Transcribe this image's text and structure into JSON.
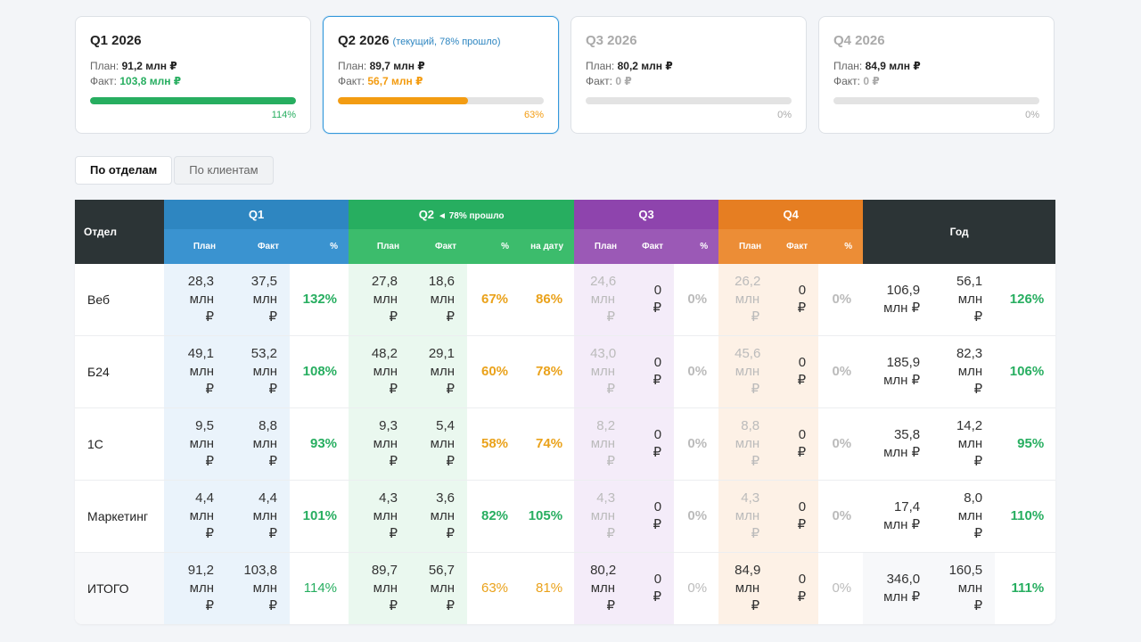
{
  "cards": [
    {
      "title": "Q1 2026",
      "plan_label": "План:",
      "plan": "91,2 млн ₽",
      "fact_label": "Факт:",
      "fact": "103,8 млн ₽",
      "progress": {
        "value": 114,
        "label": "114%"
      },
      "color": "#27ae60",
      "title_color": "#222222"
    },
    {
      "title": "Q2 2026",
      "note": "(текущий, 78% прошло)",
      "plan_label": "План:",
      "plan": "89,7 млн ₽",
      "fact_label": "Факт:",
      "fact": "56,7 млн ₽",
      "progress": {
        "value": 63,
        "label": "63%"
      },
      "color": "#f39c12",
      "title_color": "#222222"
    },
    {
      "title": "Q3 2026",
      "plan_label": "План:",
      "plan": "80,2 млн ₽",
      "fact_label": "Факт:",
      "fact": "0 ₽",
      "progress": {
        "value": 0,
        "label": "0%"
      },
      "color": "#aaaaaa",
      "title_color": "#aaaaaa"
    },
    {
      "title": "Q4 2026",
      "plan_label": "План:",
      "plan": "84,9 млн ₽",
      "fact_label": "Факт:",
      "fact": "0 ₽",
      "progress": {
        "value": 0,
        "label": "0%"
      },
      "color": "#aaaaaa",
      "title_color": "#aaaaaa"
    }
  ],
  "tabs": [
    "По отделам",
    "По клиентам"
  ],
  "table": {
    "header": {
      "dept": "Отдел",
      "year": "Год",
      "groups": [
        {
          "title": "Q1"
        },
        {
          "title": "Q2",
          "note": "◄ 78% прошло"
        },
        {
          "title": "Q3"
        },
        {
          "title": "Q4"
        }
      ],
      "subheaders": [
        [
          "План",
          "Факт",
          "%"
        ],
        [
          "План",
          "Факт",
          "%",
          "на дату"
        ],
        [
          "План",
          "Факт",
          "%"
        ],
        [
          "План",
          "Факт",
          "%"
        ]
      ]
    },
    "rows": [
      {
        "name": "Веб",
        "values": [
          "28,3 млн ₽",
          "37,5 млн ₽",
          "132%",
          "27,8 млн ₽",
          "18,6 млн ₽",
          "67%",
          "86%",
          "24,6 млн ₽",
          "0 ₽",
          "0%",
          "26,2 млн ₽",
          "0 ₽",
          "0%",
          "106,9 млн ₽",
          "56,1 млн ₽",
          "126%"
        ],
        "colors": [
          "#333333",
          "#333333",
          "#27ae60",
          "#333333",
          "#333333",
          "#eaa21b",
          "#eaa21b",
          "#bbbbbb",
          "#333333",
          "#bbbbbb",
          "#bbbbbb",
          "#333333",
          "#bbbbbb",
          "#333333",
          "#333333",
          "#27ae60"
        ]
      },
      {
        "name": "Б24",
        "values": [
          "49,1 млн ₽",
          "53,2 млн ₽",
          "108%",
          "48,2 млн ₽",
          "29,1 млн ₽",
          "60%",
          "78%",
          "43,0 млн ₽",
          "0 ₽",
          "0%",
          "45,6 млн ₽",
          "0 ₽",
          "0%",
          "185,9 млн ₽",
          "82,3 млн ₽",
          "106%"
        ],
        "colors": [
          "#333333",
          "#333333",
          "#27ae60",
          "#333333",
          "#333333",
          "#eaa21b",
          "#eaa21b",
          "#bbbbbb",
          "#333333",
          "#bbbbbb",
          "#bbbbbb",
          "#333333",
          "#bbbbbb",
          "#333333",
          "#333333",
          "#27ae60"
        ]
      },
      {
        "name": "1С",
        "values": [
          "9,5 млн ₽",
          "8,8 млн ₽",
          "93%",
          "9,3 млн ₽",
          "5,4 млн ₽",
          "58%",
          "74%",
          "8,2 млн ₽",
          "0 ₽",
          "0%",
          "8,8 млн ₽",
          "0 ₽",
          "0%",
          "35,8 млн ₽",
          "14,2 млн ₽",
          "95%"
        ],
        "colors": [
          "#333333",
          "#333333",
          "#27ae60",
          "#333333",
          "#333333",
          "#eaa21b",
          "#eaa21b",
          "#bbbbbb",
          "#333333",
          "#bbbbbb",
          "#bbbbbb",
          "#333333",
          "#bbbbbb",
          "#333333",
          "#333333",
          "#27ae60"
        ]
      },
      {
        "name": "Маркетинг",
        "values": [
          "4,4 млн ₽",
          "4,4 млн ₽",
          "101%",
          "4,3 млн ₽",
          "3,6 млн ₽",
          "82%",
          "105%",
          "4,3 млн ₽",
          "0 ₽",
          "0%",
          "4,3 млн ₽",
          "0 ₽",
          "0%",
          "17,4 млн ₽",
          "8,0 млн ₽",
          "110%"
        ],
        "colors": [
          "#333333",
          "#333333",
          "#27ae60",
          "#333333",
          "#333333",
          "#27ae60",
          "#27ae60",
          "#bbbbbb",
          "#333333",
          "#bbbbbb",
          "#bbbbbb",
          "#333333",
          "#bbbbbb",
          "#333333",
          "#333333",
          "#27ae60"
        ]
      },
      {
        "name": "ИТОГО",
        "values": [
          "91,2 млн ₽",
          "103,8 млн ₽",
          "114%",
          "89,7 млн ₽",
          "56,7 млн ₽",
          "63%",
          "81%",
          "80,2 млн ₽",
          "0 ₽",
          "0%",
          "84,9 млн ₽",
          "0 ₽",
          "0%",
          "346,0 млн ₽",
          "160,5 млн ₽",
          "111%"
        ],
        "colors": [
          "#333333",
          "#333333",
          "#27ae60",
          "#333333",
          "#333333",
          "#eaa21b",
          "#eaa21b",
          "#333333",
          "#333333",
          "#bbbbbb",
          "#333333",
          "#333333",
          "#bbbbbb",
          "#333333",
          "#333333",
          "#27ae60"
        ]
      }
    ]
  }
}
